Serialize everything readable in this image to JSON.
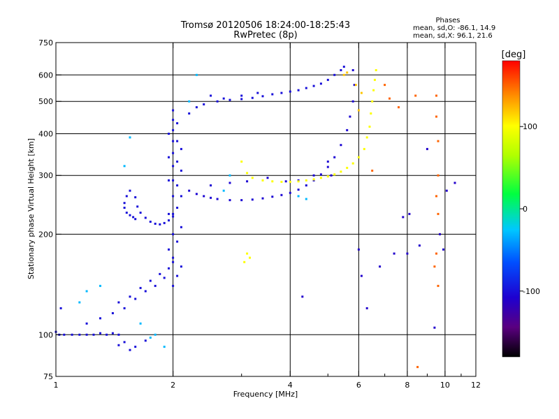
{
  "header": {
    "title": "Tromsø 20120506 18:24:00-18:25:43",
    "subtitle": "RwPretec (8p)"
  },
  "stats": {
    "heading": "Phases",
    "line_o": "mean, sd,O: -86.1, 14.9",
    "line_x": "mean, sd,X:  96.1, 21.6"
  },
  "colorbar": {
    "unit": "[deg]",
    "ticks": [
      {
        "value": 100,
        "label": "100"
      },
      {
        "value": 0,
        "label": "0"
      },
      {
        "value": -100,
        "label": "-100"
      }
    ],
    "range": [
      -180,
      180
    ]
  },
  "chart_data": {
    "type": "scatter",
    "title": "Tromsø 20120506 18:24:00-18:25:43",
    "subtitle": "RwPretec (8p)",
    "xlabel": "Frequency [MHz]",
    "ylabel": "Stationary phase Virtual Height [km]",
    "x_scale": "log",
    "y_scale": "log",
    "xlim": [
      1,
      12
    ],
    "ylim": [
      75,
      750
    ],
    "x_ticks": [
      1,
      2,
      4,
      6,
      8,
      10,
      12
    ],
    "x_tick_labels": [
      "1",
      "2",
      "4",
      "6",
      "8",
      "10",
      "12"
    ],
    "x_minor_ticks": [
      3,
      5,
      7,
      9,
      11
    ],
    "x_gridlines": [
      2,
      4,
      6,
      8,
      10
    ],
    "y_ticks": [
      75,
      100,
      200,
      300,
      400,
      500,
      600,
      750
    ],
    "y_tick_labels": [
      "75",
      "100",
      "200",
      "300",
      "400",
      "500",
      "600",
      "750"
    ],
    "y_gridlines": [
      100,
      200,
      300,
      400,
      500,
      600
    ],
    "grid": true,
    "colorbar_label": "[deg]",
    "color_range": [
      -180,
      180
    ],
    "series": [
      {
        "points": [
          [
            1.02,
            100
          ],
          [
            1.05,
            100
          ],
          [
            1.1,
            100
          ],
          [
            1.15,
            100
          ],
          [
            1.2,
            100
          ],
          [
            1.25,
            100
          ],
          [
            1.3,
            101
          ],
          [
            1.35,
            100
          ],
          [
            1.4,
            101
          ],
          [
            1.45,
            100
          ],
          [
            1.0,
            102
          ],
          [
            1.03,
            120
          ],
          [
            1.2,
            108
          ],
          [
            1.3,
            112
          ],
          [
            1.4,
            116
          ],
          [
            1.5,
            120
          ],
          [
            1.6,
            128
          ],
          [
            1.7,
            135
          ],
          [
            1.8,
            140
          ],
          [
            1.9,
            148
          ],
          [
            1.95,
            158
          ],
          [
            2.0,
            165
          ],
          [
            1.45,
            125
          ],
          [
            1.55,
            130
          ],
          [
            1.65,
            138
          ],
          [
            1.75,
            145
          ],
          [
            1.85,
            152
          ],
          [
            1.5,
            95
          ],
          [
            1.6,
            92
          ],
          [
            1.7,
            96
          ],
          [
            1.55,
            90
          ],
          [
            1.45,
            93
          ]
        ],
        "color_value": -100
      },
      {
        "points": [
          [
            2.0,
            140
          ],
          [
            2.0,
            170
          ],
          [
            2.0,
            200
          ],
          [
            2.0,
            230
          ],
          [
            2.0,
            260
          ],
          [
            2.0,
            290
          ],
          [
            2.0,
            320
          ],
          [
            2.0,
            350
          ],
          [
            2.0,
            380
          ],
          [
            2.0,
            410
          ],
          [
            2.0,
            440
          ],
          [
            2.0,
            470
          ],
          [
            2.05,
            150
          ],
          [
            2.05,
            190
          ],
          [
            2.05,
            240
          ],
          [
            2.05,
            280
          ],
          [
            2.05,
            330
          ],
          [
            2.05,
            380
          ],
          [
            2.05,
            430
          ],
          [
            2.1,
            160
          ],
          [
            2.1,
            210
          ],
          [
            2.1,
            260
          ],
          [
            2.1,
            310
          ],
          [
            2.1,
            360
          ],
          [
            1.95,
            180
          ],
          [
            1.95,
            230
          ],
          [
            1.95,
            290
          ],
          [
            1.95,
            340
          ],
          [
            1.95,
            400
          ]
        ],
        "color_value": -100
      },
      {
        "points": [
          [
            1.5,
            248
          ],
          [
            1.52,
            260
          ],
          [
            1.55,
            270
          ],
          [
            1.6,
            258
          ],
          [
            1.62,
            242
          ],
          [
            1.65,
            232
          ],
          [
            1.7,
            224
          ],
          [
            1.75,
            218
          ],
          [
            1.8,
            215
          ],
          [
            1.85,
            214
          ],
          [
            1.9,
            216
          ],
          [
            1.95,
            220
          ],
          [
            2.0,
            226
          ],
          [
            1.5,
            240
          ],
          [
            1.52,
            232
          ],
          [
            1.55,
            228
          ],
          [
            1.58,
            225
          ],
          [
            1.6,
            222
          ]
        ],
        "color_value": -100
      },
      {
        "points": [
          [
            2.2,
            270
          ],
          [
            2.3,
            264
          ],
          [
            2.4,
            260
          ],
          [
            2.5,
            257
          ],
          [
            2.6,
            255
          ],
          [
            2.8,
            253
          ],
          [
            3.0,
            253
          ],
          [
            3.2,
            254
          ],
          [
            3.4,
            256
          ],
          [
            3.6,
            259
          ],
          [
            3.8,
            262
          ],
          [
            4.0,
            266
          ],
          [
            4.2,
            272
          ],
          [
            4.4,
            280
          ],
          [
            4.6,
            290
          ],
          [
            4.8,
            302
          ],
          [
            5.0,
            318
          ],
          [
            5.2,
            340
          ],
          [
            5.4,
            370
          ],
          [
            5.6,
            410
          ],
          [
            5.7,
            450
          ],
          [
            5.8,
            500
          ],
          [
            5.85,
            560
          ],
          [
            5.8,
            620
          ],
          [
            2.5,
            280
          ],
          [
            2.8,
            285
          ],
          [
            3.1,
            288
          ],
          [
            3.5,
            295
          ],
          [
            3.9,
            288
          ],
          [
            4.2,
            290
          ],
          [
            4.6,
            300
          ],
          [
            5.0,
            330
          ]
        ],
        "color_value": -105
      },
      {
        "points": [
          [
            2.2,
            460
          ],
          [
            2.3,
            480
          ],
          [
            2.4,
            490
          ],
          [
            2.6,
            500
          ],
          [
            2.8,
            505
          ],
          [
            3.0,
            508
          ],
          [
            3.2,
            512
          ],
          [
            3.4,
            518
          ],
          [
            3.6,
            525
          ],
          [
            3.8,
            530
          ],
          [
            4.0,
            535
          ],
          [
            4.2,
            540
          ],
          [
            4.4,
            548
          ],
          [
            4.6,
            556
          ],
          [
            4.8,
            565
          ],
          [
            5.0,
            580
          ],
          [
            5.2,
            600
          ],
          [
            5.4,
            620
          ],
          [
            5.5,
            635
          ],
          [
            2.5,
            520
          ],
          [
            2.7,
            510
          ],
          [
            3.0,
            520
          ],
          [
            3.3,
            530
          ]
        ],
        "color_value": -100
      },
      {
        "points": [
          [
            3.0,
            330
          ],
          [
            3.1,
            305
          ],
          [
            3.2,
            295
          ],
          [
            3.4,
            290
          ],
          [
            3.6,
            288
          ],
          [
            3.8,
            287
          ],
          [
            4.0,
            287
          ],
          [
            4.2,
            288
          ],
          [
            4.4,
            290
          ],
          [
            4.6,
            292
          ],
          [
            4.8,
            295
          ],
          [
            5.0,
            298
          ],
          [
            5.2,
            302
          ],
          [
            5.4,
            308
          ],
          [
            5.6,
            316
          ],
          [
            5.8,
            326
          ],
          [
            6.0,
            340
          ],
          [
            6.2,
            360
          ],
          [
            6.3,
            390
          ],
          [
            6.4,
            420
          ],
          [
            6.45,
            460
          ],
          [
            6.5,
            500
          ],
          [
            6.55,
            540
          ],
          [
            6.6,
            580
          ],
          [
            6.65,
            620
          ],
          [
            3.1,
            175
          ],
          [
            3.15,
            170
          ],
          [
            3.05,
            165
          ]
        ],
        "color_value": 100
      },
      {
        "points": [
          [
            5.5,
            600
          ],
          [
            5.6,
            610
          ],
          [
            6.0,
            470
          ],
          [
            6.1,
            530
          ],
          [
            5.9,
            560
          ]
        ],
        "color_value": 120
      },
      {
        "points": [
          [
            7.0,
            560
          ],
          [
            7.2,
            510
          ],
          [
            7.6,
            480
          ],
          [
            8.4,
            520
          ],
          [
            9.5,
            520
          ],
          [
            9.5,
            450
          ],
          [
            9.6,
            380
          ],
          [
            9.6,
            300
          ],
          [
            9.5,
            260
          ],
          [
            9.6,
            230
          ],
          [
            9.7,
            200
          ],
          [
            9.5,
            175
          ],
          [
            9.4,
            160
          ],
          [
            9.6,
            140
          ],
          [
            6.5,
            310
          ],
          [
            8.5,
            80
          ]
        ],
        "color_value": 150
      },
      {
        "points": [
          [
            6.1,
            150
          ],
          [
            6.3,
            120
          ],
          [
            6.8,
            160
          ],
          [
            7.4,
            175
          ],
          [
            7.8,
            225
          ],
          [
            8.6,
            185
          ],
          [
            8.0,
            175
          ],
          [
            10.6,
            285
          ],
          [
            10.1,
            270
          ],
          [
            9.0,
            360
          ],
          [
            6.0,
            180
          ],
          [
            5.1,
            300
          ],
          [
            4.3,
            130
          ],
          [
            8.1,
            230
          ],
          [
            9.7,
            200
          ],
          [
            9.9,
            180
          ],
          [
            9.4,
            105
          ]
        ],
        "color_value": -110
      },
      {
        "points": [
          [
            1.5,
            320
          ],
          [
            1.55,
            390
          ],
          [
            1.3,
            140
          ],
          [
            1.2,
            135
          ],
          [
            1.15,
            125
          ],
          [
            1.8,
            100
          ],
          [
            1.9,
            92
          ],
          [
            1.65,
            108
          ],
          [
            1.75,
            98
          ],
          [
            2.3,
            600
          ],
          [
            2.2,
            500
          ],
          [
            4.2,
            260
          ],
          [
            4.4,
            255
          ],
          [
            2.8,
            300
          ],
          [
            2.7,
            270
          ]
        ],
        "color_value": -30
      }
    ]
  }
}
